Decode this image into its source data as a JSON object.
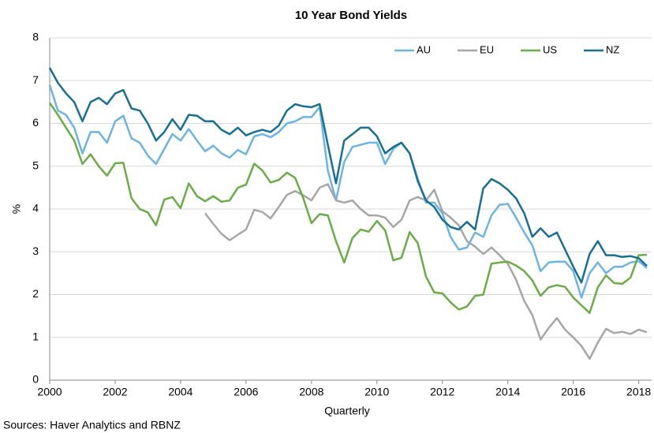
{
  "chart_data": {
    "type": "line",
    "title": "10 Year Bond Yields",
    "ylabel": "%",
    "xlabel": "Quarterly",
    "source": "Sources: Haver Analytics and RBNZ",
    "x": [
      2000,
      2000.25,
      2000.5,
      2000.75,
      2001,
      2001.25,
      2001.5,
      2001.75,
      2002,
      2002.25,
      2002.5,
      2002.75,
      2003,
      2003.25,
      2003.5,
      2003.75,
      2004,
      2004.25,
      2004.5,
      2004.75,
      2005,
      2005.25,
      2005.5,
      2005.75,
      2006,
      2006.25,
      2006.5,
      2006.75,
      2007,
      2007.25,
      2007.5,
      2007.75,
      2008,
      2008.25,
      2008.5,
      2008.75,
      2009,
      2009.25,
      2009.5,
      2009.75,
      2010,
      2010.25,
      2010.5,
      2010.75,
      2011,
      2011.25,
      2011.5,
      2011.75,
      2012,
      2012.25,
      2012.5,
      2012.75,
      2013,
      2013.25,
      2013.5,
      2013.75,
      2014,
      2014.25,
      2014.5,
      2014.75,
      2015,
      2015.25,
      2015.5,
      2015.75,
      2016,
      2016.25,
      2016.5,
      2016.75,
      2017,
      2017.25,
      2017.5,
      2017.75,
      2018,
      2018.25
    ],
    "series": [
      {
        "name": "AU",
        "color": "#6cb4e4",
        "values": [
          6.9,
          6.3,
          6.2,
          5.9,
          5.3,
          5.8,
          5.8,
          5.55,
          6.05,
          6.18,
          5.65,
          5.55,
          5.25,
          5.05,
          5.4,
          5.75,
          5.6,
          5.87,
          5.6,
          5.35,
          5.48,
          5.3,
          5.2,
          5.38,
          5.28,
          5.7,
          5.75,
          5.68,
          5.8,
          6.0,
          6.05,
          6.15,
          6.15,
          6.38,
          4.9,
          4.2,
          5.1,
          5.45,
          5.5,
          5.55,
          5.55,
          5.05,
          5.4,
          5.55,
          5.3,
          4.7,
          4.15,
          4.15,
          3.9,
          3.35,
          3.05,
          3.1,
          3.45,
          3.35,
          3.85,
          4.1,
          4.12,
          3.8,
          3.45,
          3.15,
          2.55,
          2.75,
          2.77,
          2.77,
          2.55,
          1.93,
          2.5,
          2.75,
          2.5,
          2.65,
          2.65,
          2.75,
          2.78,
          2.62
        ]
      },
      {
        "name": "EU",
        "color": "#a6a6a6",
        "values": [
          null,
          null,
          null,
          null,
          null,
          null,
          null,
          null,
          null,
          null,
          null,
          null,
          null,
          null,
          null,
          null,
          null,
          null,
          null,
          3.9,
          3.65,
          3.42,
          3.27,
          3.4,
          3.52,
          3.98,
          3.93,
          3.78,
          4.05,
          4.33,
          4.42,
          4.32,
          4.2,
          4.5,
          4.58,
          4.2,
          4.15,
          4.2,
          4.0,
          3.85,
          3.85,
          3.8,
          3.58,
          3.75,
          4.2,
          4.28,
          4.2,
          4.45,
          3.95,
          3.8,
          3.62,
          3.25,
          3.12,
          2.95,
          3.1,
          2.92,
          2.72,
          2.35,
          1.85,
          1.52,
          0.95,
          1.22,
          1.45,
          1.18,
          1.0,
          0.8,
          0.5,
          0.88,
          1.2,
          1.1,
          1.13,
          1.08,
          1.18,
          1.12
        ]
      },
      {
        "name": "US",
        "color": "#6aac46",
        "values": [
          6.48,
          6.2,
          5.9,
          5.6,
          5.05,
          5.28,
          5.0,
          4.78,
          5.07,
          5.08,
          4.25,
          4.0,
          3.92,
          3.62,
          4.22,
          4.28,
          4.02,
          4.6,
          4.3,
          4.18,
          4.3,
          4.17,
          4.2,
          4.5,
          4.57,
          5.06,
          4.9,
          4.62,
          4.68,
          4.85,
          4.73,
          4.25,
          3.67,
          3.88,
          3.85,
          3.25,
          2.75,
          3.32,
          3.52,
          3.47,
          3.72,
          3.5,
          2.8,
          2.86,
          3.46,
          3.2,
          2.42,
          2.05,
          2.03,
          1.82,
          1.65,
          1.72,
          1.97,
          2.0,
          2.72,
          2.75,
          2.77,
          2.68,
          2.55,
          2.33,
          1.97,
          2.17,
          2.22,
          2.18,
          1.93,
          1.75,
          1.57,
          2.17,
          2.45,
          2.27,
          2.25,
          2.4,
          2.92,
          2.93
        ]
      },
      {
        "name": "NZ",
        "color": "#176f94",
        "values": [
          7.3,
          6.95,
          6.7,
          6.5,
          6.05,
          6.5,
          6.6,
          6.45,
          6.7,
          6.78,
          6.35,
          6.3,
          6.0,
          5.6,
          5.8,
          6.1,
          5.85,
          6.2,
          6.18,
          6.05,
          6.05,
          5.85,
          5.75,
          5.9,
          5.72,
          5.8,
          5.85,
          5.8,
          5.95,
          6.3,
          6.45,
          6.4,
          6.38,
          6.45,
          5.5,
          4.6,
          5.6,
          5.75,
          5.9,
          5.9,
          5.7,
          5.3,
          5.45,
          5.55,
          5.3,
          4.65,
          4.2,
          4.05,
          3.75,
          3.58,
          3.52,
          3.7,
          3.52,
          4.48,
          4.7,
          4.6,
          4.45,
          4.25,
          3.9,
          3.35,
          3.55,
          3.35,
          3.45,
          3.05,
          2.65,
          2.28,
          2.95,
          3.25,
          2.92,
          2.92,
          2.88,
          2.9,
          2.85,
          2.67
        ]
      }
    ],
    "xlim": [
      2000,
      2018.25
    ],
    "xticks": [
      2000,
      2002,
      2004,
      2006,
      2008,
      2010,
      2012,
      2014,
      2016,
      2018
    ],
    "ylim": [
      0,
      8
    ],
    "yticks": [
      0,
      1,
      2,
      3,
      4,
      5,
      6,
      7,
      8
    ],
    "grid": true,
    "legend": "top-right"
  }
}
